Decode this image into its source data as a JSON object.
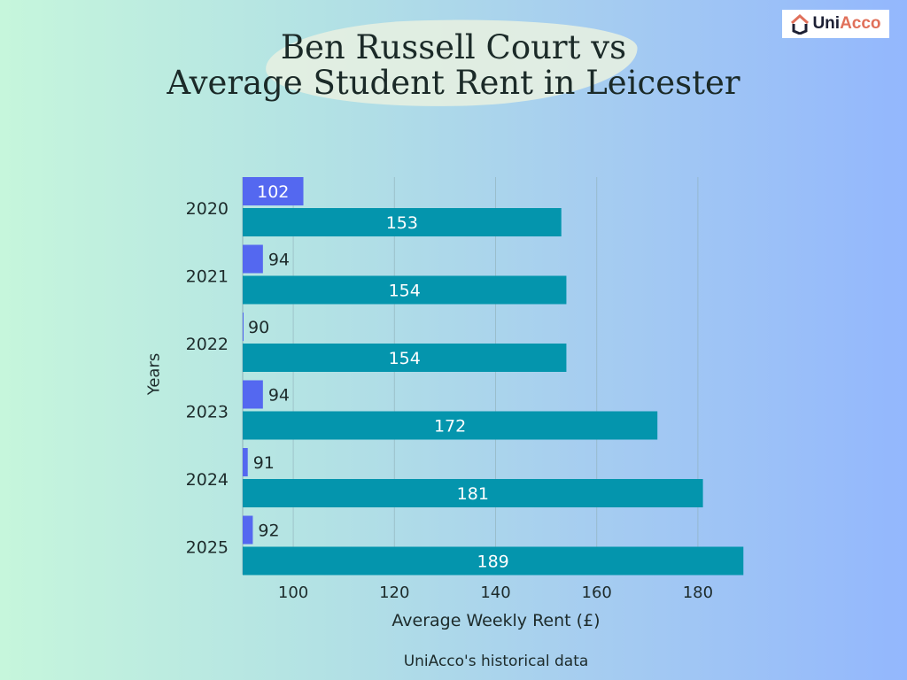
{
  "logo": {
    "brand_dark": "Uni",
    "brand_accent": "Acco"
  },
  "title_line1": "Ben Russell Court vs",
  "title_line2": "Average Student Rent in Leicester",
  "source": "UniAcco's historical data",
  "chart_data": {
    "type": "bar",
    "orientation": "horizontal",
    "title": "Ben Russell Court vs Average Student Rent in Leicester",
    "xlabel": "Average Weekly Rent (£)",
    "ylabel": "Years",
    "categories": [
      "2020",
      "2021",
      "2022",
      "2023",
      "2024",
      "2025"
    ],
    "series": [
      {
        "values": [
          102,
          94,
          90,
          94,
          91,
          92
        ],
        "color": "#5468f0"
      },
      {
        "values": [
          153,
          154,
          154,
          172,
          181,
          189
        ],
        "color": "#0495ad"
      }
    ],
    "xlim": [
      90,
      190
    ],
    "xticks": [
      100,
      120,
      140,
      160,
      180
    ],
    "grid": true,
    "legend": "none"
  }
}
